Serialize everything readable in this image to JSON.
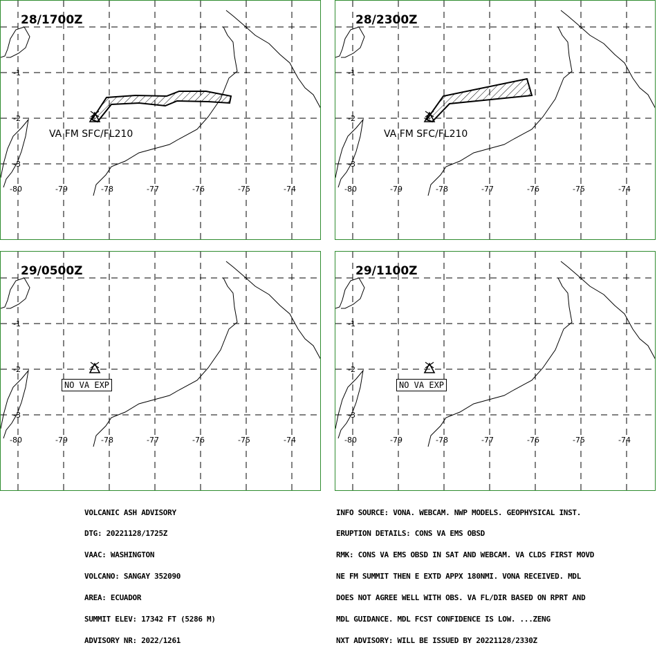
{
  "panels": [
    {
      "title": "28/1700Z",
      "forecast": "VA FM SFC/FL210"
    },
    {
      "title": "28/2300Z",
      "forecast": "VA FM SFC/FL210"
    },
    {
      "title": "29/0500Z",
      "forecast": "NO VA EXP"
    },
    {
      "title": "29/1100Z",
      "forecast": "NO VA EXP"
    }
  ],
  "axes": {
    "lon_labels": [
      "-80",
      "-79",
      "-78",
      "-77",
      "-76",
      "-75",
      "-74"
    ],
    "lat_labels": [
      "-1",
      "-2",
      "-3"
    ]
  },
  "advisory_left": [
    "VOLCANIC ASH ADVISORY",
    "DTG: 20221128/1725Z",
    "VAAC: WASHINGTON",
    "VOLCANO: SANGAY 352090",
    "AREA: ECUADOR",
    "SUMMIT ELEV: 17342 FT (5286 M)",
    "ADVISORY NR: 2022/1261"
  ],
  "advisory_right": [
    "INFO SOURCE: VONA. WEBCAM. NWP MODELS. GEOPHYSICAL INST.",
    "ERUPTION DETAILS: CONS VA EMS OBSD",
    "RMK: CONS VA EMS OBSD IN SAT AND WEBCAM. VA CLDS FIRST MOVD",
    "NE FM SUMMIT THEN E EXTD APPX 180NMI. VONA RECEIVED. MDL",
    "DOES NOT AGREE WELL WITH OBS. VA FL/DIR BASED ON RPRT AND",
    "MDL GUIDANCE. MDL FCST CONFIDENCE IS LOW. ...ZENG",
    "NXT ADVISORY: WILL BE ISSUED BY 20221128/2330Z"
  ],
  "colors": {
    "frame": "#2e8b2e",
    "ink": "#000000"
  }
}
